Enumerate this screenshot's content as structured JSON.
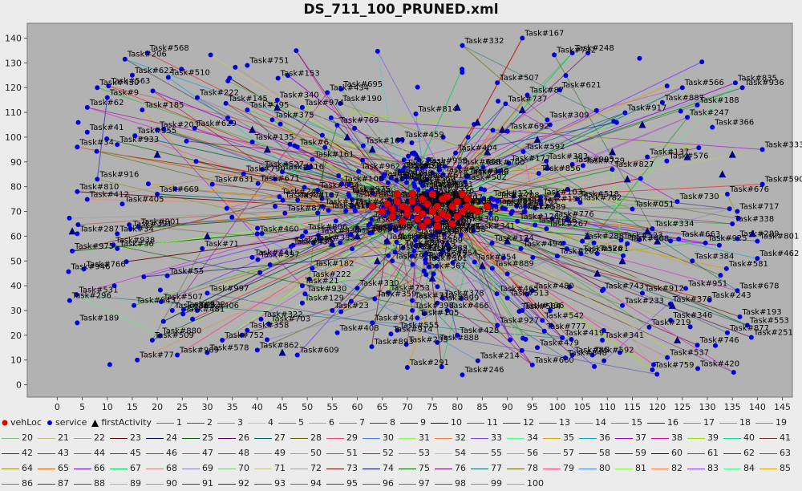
{
  "chart_data": {
    "type": "scatter",
    "title": "DS_711_100_PRUNED.xml",
    "xlabel": "",
    "ylabel": "",
    "xlim": [
      -6,
      147
    ],
    "ylim": [
      -5,
      146
    ],
    "x_ticks": [
      "0",
      "5",
      "10",
      "15",
      "20",
      "25",
      "30",
      "35",
      "40",
      "45",
      "50",
      "55",
      "60",
      "65",
      "70",
      "75",
      "80",
      "85",
      "90",
      "95",
      "100",
      "105",
      "110",
      "115",
      "120",
      "125",
      "130",
      "135",
      "140",
      "145"
    ],
    "y_ticks": [
      "0",
      "10",
      "20",
      "30",
      "40",
      "50",
      "60",
      "70",
      "80",
      "90",
      "100",
      "110",
      "120",
      "130",
      "140"
    ],
    "grid": false,
    "legend_position": "bottom",
    "colors": {
      "plot_background": "#b2b2b2",
      "vehLoc": "#e00000",
      "service": "#0000dd",
      "firstActivity": "#000080"
    },
    "legend": {
      "markers": [
        "vehLoc",
        "service",
        "firstActivity"
      ],
      "routes": [
        "1",
        "2",
        "3",
        "4",
        "5",
        "6",
        "7",
        "8",
        "9",
        "10",
        "11",
        "12",
        "13",
        "14",
        "15",
        "16",
        "17",
        "18",
        "19",
        "20",
        "21",
        "22",
        "23",
        "24",
        "25",
        "26",
        "27",
        "28",
        "29",
        "30",
        "31",
        "32",
        "33",
        "34",
        "35",
        "36",
        "37",
        "38",
        "39",
        "40",
        "41",
        "42",
        "43",
        "44",
        "45",
        "46",
        "47",
        "48",
        "49",
        "50",
        "51",
        "52",
        "53",
        "54",
        "55",
        "56",
        "57",
        "58",
        "59",
        "60",
        "61",
        "62",
        "63",
        "64",
        "65",
        "66",
        "67",
        "68",
        "69",
        "70",
        "71",
        "72",
        "73",
        "74",
        "75",
        "76",
        "77",
        "78",
        "79",
        "80",
        "81",
        "82",
        "83",
        "84",
        "85",
        "86",
        "87",
        "88",
        "89",
        "90",
        "91",
        "92",
        "93",
        "94",
        "95",
        "96",
        "97",
        "98",
        "99",
        "100"
      ],
      "route_colors": [
        "#e04040",
        "#4040e0",
        "#40c040",
        "#d0d040",
        "#d040d0",
        "#40d0d0",
        "#808080",
        "#404040",
        "#c00000",
        "#0000c0",
        "#00a000",
        "#a000a0",
        "#008080",
        "#909000",
        "#d06000",
        "#6000d0",
        "#00d060",
        "#c08080",
        "#8080c0",
        "#80c080",
        "#c0c080",
        "#a0a0a0",
        "#600000",
        "#000060",
        "#006000",
        "#600060",
        "#006060",
        "#606000",
        "#ff4080",
        "#4080ff",
        "#80ff40",
        "#ff8040",
        "#8040ff",
        "#40ff80",
        "#e0a000",
        "#00a0e0",
        "#a000e0",
        "#e000a0",
        "#a0e000",
        "#00e0a0",
        "#703030",
        "#303070",
        "#307030",
        "#707030",
        "#703070",
        "#307070",
        "#b05050",
        "#5050b0",
        "#50b050",
        "#b0b050"
      ]
    },
    "service_labels": [
      {
        "label": "Task#568",
        "x": 18,
        "y": 134
      },
      {
        "label": "Task#622",
        "x": 15,
        "y": 125
      },
      {
        "label": "Task#430",
        "x": 8,
        "y": 120
      },
      {
        "label": "Task#9",
        "x": 10,
        "y": 116
      },
      {
        "label": "Task#62",
        "x": 6,
        "y": 112
      },
      {
        "label": "Task#185",
        "x": 17,
        "y": 111
      },
      {
        "label": "Task#222",
        "x": 28,
        "y": 116
      },
      {
        "label": "Task#751",
        "x": 38,
        "y": 129
      },
      {
        "label": "Task#167",
        "x": 93,
        "y": 140
      },
      {
        "label": "Task#332",
        "x": 81,
        "y": 137
      },
      {
        "label": "Task#936",
        "x": 137,
        "y": 120
      },
      {
        "label": "Task#41",
        "x": 6,
        "y": 102
      },
      {
        "label": "Task#203",
        "x": 20,
        "y": 103
      },
      {
        "label": "Task#933",
        "x": 12,
        "y": 97
      },
      {
        "label": "Task#34",
        "x": 4,
        "y": 96
      },
      {
        "label": "Task#795",
        "x": 38,
        "y": 111
      },
      {
        "label": "Task#375",
        "x": 43,
        "y": 107
      },
      {
        "label": "Task#135",
        "x": 39,
        "y": 98
      },
      {
        "label": "Task#247",
        "x": 126,
        "y": 108
      },
      {
        "label": "Task#366",
        "x": 131,
        "y": 104
      },
      {
        "label": "Task#333",
        "x": 141,
        "y": 95
      },
      {
        "label": "Task#916",
        "x": 8,
        "y": 83
      },
      {
        "label": "Task#810",
        "x": 4,
        "y": 78
      },
      {
        "label": "Task#287",
        "x": 4,
        "y": 61
      },
      {
        "label": "Task#975",
        "x": 3,
        "y": 54
      },
      {
        "label": "Task#189",
        "x": 4,
        "y": 25
      },
      {
        "label": "Task#509",
        "x": 19,
        "y": 18
      },
      {
        "label": "Task#77",
        "x": 16,
        "y": 10
      },
      {
        "label": "Task#969",
        "x": 24,
        "y": 12
      },
      {
        "label": "Task#578",
        "x": 30,
        "y": 13
      },
      {
        "label": "Task#752",
        "x": 33,
        "y": 18
      },
      {
        "label": "Task#862",
        "x": 40,
        "y": 14
      },
      {
        "label": "Task#609",
        "x": 48,
        "y": 12
      },
      {
        "label": "Task#358",
        "x": 38,
        "y": 22
      },
      {
        "label": "Task#291",
        "x": 70,
        "y": 7
      },
      {
        "label": "Task#246",
        "x": 81,
        "y": 4
      },
      {
        "label": "Task#660",
        "x": 95,
        "y": 8
      },
      {
        "label": "Task#592",
        "x": 107,
        "y": 12
      },
      {
        "label": "Task#759",
        "x": 119,
        "y": 6
      },
      {
        "label": "Task#537",
        "x": 122,
        "y": 11
      },
      {
        "label": "Task#746",
        "x": 128,
        "y": 16
      },
      {
        "label": "Task#877",
        "x": 134,
        "y": 21
      },
      {
        "label": "Task#553",
        "x": 138,
        "y": 24
      },
      {
        "label": "Task#341",
        "x": 109,
        "y": 18
      },
      {
        "label": "Task#85",
        "x": 103,
        "y": 12
      },
      {
        "label": "Task#462",
        "x": 140,
        "y": 51
      },
      {
        "label": "Task#801",
        "x": 140,
        "y": 58
      },
      {
        "label": "Task#289",
        "x": 136,
        "y": 59
      },
      {
        "label": "Task#338",
        "x": 135,
        "y": 65
      },
      {
        "label": "Task#717",
        "x": 136,
        "y": 70
      },
      {
        "label": "Task#590",
        "x": 141,
        "y": 81
      },
      {
        "label": "Task#676",
        "x": 134,
        "y": 77
      },
      {
        "label": "Task#730",
        "x": 124,
        "y": 74
      },
      {
        "label": "Task#384",
        "x": 127,
        "y": 50
      },
      {
        "label": "Task#678",
        "x": 136,
        "y": 38
      },
      {
        "label": "Task#912",
        "x": 117,
        "y": 37
      },
      {
        "label": "Task#233",
        "x": 113,
        "y": 32
      },
      {
        "label": "Task#776",
        "x": 99,
        "y": 67
      },
      {
        "label": "Task#518",
        "x": 104,
        "y": 75
      },
      {
        "label": "Task#905",
        "x": 103,
        "y": 89
      },
      {
        "label": "Task#827",
        "x": 111,
        "y": 87
      },
      {
        "label": "Task#887",
        "x": 121,
        "y": 114
      },
      {
        "label": "Task#566",
        "x": 125,
        "y": 120
      },
      {
        "label": "Task#309",
        "x": 98,
        "y": 107
      },
      {
        "label": "Task#87",
        "x": 94,
        "y": 117
      },
      {
        "label": "Task#507",
        "x": 88,
        "y": 122
      },
      {
        "label": "Task#248",
        "x": 103,
        "y": 134
      },
      {
        "label": "Task#974",
        "x": 49,
        "y": 112
      },
      {
        "label": "Task#434",
        "x": 54,
        "y": 118
      },
      {
        "label": "Task#340",
        "x": 44,
        "y": 115
      },
      {
        "label": "Task#459",
        "x": 69,
        "y": 99
      },
      {
        "label": "Task#161",
        "x": 51,
        "y": 91
      },
      {
        "label": "Task#116",
        "x": 45,
        "y": 86
      },
      {
        "label": "Task#527",
        "x": 41,
        "y": 87
      },
      {
        "label": "Task#6",
        "x": 48,
        "y": 96
      },
      {
        "label": "Task#631",
        "x": 31,
        "y": 81
      },
      {
        "label": "Task#669",
        "x": 20,
        "y": 77
      },
      {
        "label": "Task#405",
        "x": 13,
        "y": 73
      },
      {
        "label": "Task#460",
        "x": 40,
        "y": 61
      },
      {
        "label": "Task#34b",
        "x": 12,
        "y": 61
      },
      {
        "label": "Task#36",
        "x": 12,
        "y": 55
      },
      {
        "label": "Task#71",
        "x": 29,
        "y": 55
      },
      {
        "label": "Task#55",
        "x": 22,
        "y": 44
      },
      {
        "label": "Task#182",
        "x": 51,
        "y": 47
      },
      {
        "label": "Task#21",
        "x": 49,
        "y": 40
      },
      {
        "label": "Task#330",
        "x": 60,
        "y": 39
      },
      {
        "label": "Task#406",
        "x": 28,
        "y": 30
      },
      {
        "label": "Task#363",
        "x": 23,
        "y": 30
      },
      {
        "label": "Task#997",
        "x": 30,
        "y": 37
      },
      {
        "label": "Task#129",
        "x": 49,
        "y": 33
      },
      {
        "label": "Task#23",
        "x": 55,
        "y": 30
      },
      {
        "label": "Task#408",
        "x": 56,
        "y": 21
      },
      {
        "label": "Task#914",
        "x": 63,
        "y": 25
      },
      {
        "label": "Task#555",
        "x": 68,
        "y": 22
      },
      {
        "label": "Task#713",
        "x": 71,
        "y": 34
      },
      {
        "label": "Task#899",
        "x": 76,
        "y": 33
      },
      {
        "label": "Task#398",
        "x": 71,
        "y": 30
      },
      {
        "label": "Task#466",
        "x": 78,
        "y": 30
      },
      {
        "label": "Task#105",
        "x": 72,
        "y": 27
      },
      {
        "label": "Task#924",
        "x": 67,
        "y": 50
      },
      {
        "label": "Task#889",
        "x": 87,
        "y": 47
      },
      {
        "label": "Task#480",
        "x": 95,
        "y": 38
      },
      {
        "label": "Task#513",
        "x": 90,
        "y": 35
      },
      {
        "label": "Task#136",
        "x": 93,
        "y": 30
      },
      {
        "label": "Task#542",
        "x": 97,
        "y": 26
      },
      {
        "label": "Task#428",
        "x": 80,
        "y": 20
      },
      {
        "label": "Task#927",
        "x": 88,
        "y": 24
      },
      {
        "label": "Task#479",
        "x": 96,
        "y": 15
      },
      {
        "label": "Task#419",
        "x": 101,
        "y": 19
      },
      {
        "label": "Task#743",
        "x": 109,
        "y": 38
      },
      {
        "label": "Task#202",
        "x": 100,
        "y": 52
      },
      {
        "label": "Task#288",
        "x": 105,
        "y": 58
      },
      {
        "label": "Task#1",
        "x": 108,
        "y": 53
      },
      {
        "label": "Task#408b",
        "x": 114,
        "y": 57
      },
      {
        "label": "Task#334",
        "x": 119,
        "y": 63
      },
      {
        "label": "Task#051",
        "x": 115,
        "y": 71
      },
      {
        "label": "Task#126",
        "x": 92,
        "y": 66
      },
      {
        "label": "Task#300",
        "x": 80,
        "y": 65
      },
      {
        "label": "Task#126b",
        "x": 91,
        "y": 70
      },
      {
        "label": "Task#137",
        "x": 118,
        "y": 92
      },
      {
        "label": "Task#188",
        "x": 128,
        "y": 113
      }
    ],
    "vehicle_locations": [
      {
        "x": 66,
        "y": 73
      },
      {
        "x": 67,
        "y": 71
      },
      {
        "x": 68,
        "y": 74
      },
      {
        "x": 69,
        "y": 72
      },
      {
        "x": 70,
        "y": 69
      },
      {
        "x": 71,
        "y": 74
      },
      {
        "x": 72,
        "y": 71
      },
      {
        "x": 73,
        "y": 75
      },
      {
        "x": 74,
        "y": 73
      },
      {
        "x": 75,
        "y": 70
      },
      {
        "x": 76,
        "y": 72
      },
      {
        "x": 77,
        "y": 75
      },
      {
        "x": 78,
        "y": 68
      },
      {
        "x": 79,
        "y": 72
      },
      {
        "x": 80,
        "y": 74
      },
      {
        "x": 81,
        "y": 70
      },
      {
        "x": 82,
        "y": 72
      },
      {
        "x": 83,
        "y": 71
      },
      {
        "x": 69,
        "y": 66
      },
      {
        "x": 72,
        "y": 67
      },
      {
        "x": 74,
        "y": 66
      },
      {
        "x": 76,
        "y": 64
      },
      {
        "x": 78,
        "y": 76
      },
      {
        "x": 71,
        "y": 77
      },
      {
        "x": 75,
        "y": 77
      },
      {
        "x": 73,
        "y": 69
      },
      {
        "x": 77,
        "y": 69
      },
      {
        "x": 70,
        "y": 71
      },
      {
        "x": 80,
        "y": 68
      },
      {
        "x": 82,
        "y": 75
      },
      {
        "x": 84,
        "y": 70
      },
      {
        "x": 86,
        "y": 72
      },
      {
        "x": 65,
        "y": 70
      },
      {
        "x": 63,
        "y": 72
      },
      {
        "x": 67,
        "y": 68
      },
      {
        "x": 79,
        "y": 65
      },
      {
        "x": 73,
        "y": 64
      },
      {
        "x": 76,
        "y": 67
      },
      {
        "x": 68,
        "y": 77
      },
      {
        "x": 81,
        "y": 77
      }
    ],
    "first_activities": [
      {
        "x": 3,
        "y": 62
      },
      {
        "x": 20,
        "y": 93
      },
      {
        "x": 39,
        "y": 103
      },
      {
        "x": 42,
        "y": 95
      },
      {
        "x": 44,
        "y": 112
      },
      {
        "x": 45,
        "y": 13
      },
      {
        "x": 50,
        "y": 88
      },
      {
        "x": 60,
        "y": 60
      },
      {
        "x": 63,
        "y": 95
      },
      {
        "x": 66,
        "y": 58
      },
      {
        "x": 72,
        "y": 92
      },
      {
        "x": 75,
        "y": 43
      },
      {
        "x": 80,
        "y": 112
      },
      {
        "x": 84,
        "y": 106
      },
      {
        "x": 86,
        "y": 94
      },
      {
        "x": 89,
        "y": 103
      },
      {
        "x": 93,
        "y": 111
      },
      {
        "x": 96,
        "y": 99
      },
      {
        "x": 98,
        "y": 88
      },
      {
        "x": 102,
        "y": 67
      },
      {
        "x": 106,
        "y": 60
      },
      {
        "x": 108,
        "y": 45
      },
      {
        "x": 111,
        "y": 94
      },
      {
        "x": 113,
        "y": 50
      },
      {
        "x": 114,
        "y": 83
      },
      {
        "x": 117,
        "y": 105
      },
      {
        "x": 120,
        "y": 58
      },
      {
        "x": 123,
        "y": 32
      },
      {
        "x": 124,
        "y": 18
      },
      {
        "x": 126,
        "y": 92
      },
      {
        "x": 133,
        "y": 85
      },
      {
        "x": 135,
        "y": 93
      },
      {
        "x": 139,
        "y": 61
      },
      {
        "x": 30,
        "y": 60
      },
      {
        "x": 55,
        "y": 57
      },
      {
        "x": 64,
        "y": 50
      },
      {
        "x": 78,
        "y": 57
      },
      {
        "x": 90,
        "y": 58
      },
      {
        "x": 100,
        "y": 77
      },
      {
        "x": 118,
        "y": 62
      },
      {
        "x": 58,
        "y": 100
      },
      {
        "x": 85,
        "y": 48
      }
    ]
  }
}
